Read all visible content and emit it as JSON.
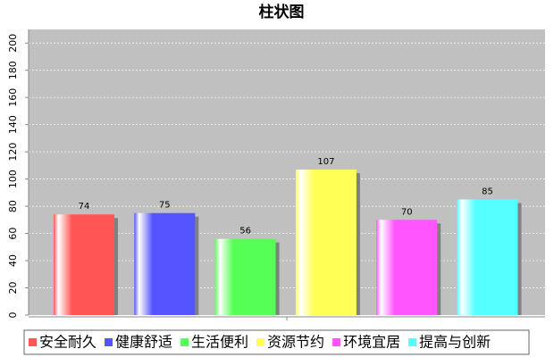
{
  "chart_data": {
    "type": "bar",
    "title": "柱状图",
    "categories": [
      "安全耐久",
      "健康舒适",
      "生活便利",
      "资源节约",
      "环境宜居",
      "提高与创新"
    ],
    "values": [
      74,
      75,
      56,
      107,
      70,
      85
    ],
    "colors": [
      "#ff5555",
      "#5555ff",
      "#55ff55",
      "#ffff55",
      "#ff55ff",
      "#55ffff"
    ],
    "ylim": [
      0,
      210
    ],
    "yticks": [
      0,
      20,
      40,
      60,
      80,
      100,
      120,
      140,
      160,
      180,
      200
    ],
    "grid": true
  }
}
